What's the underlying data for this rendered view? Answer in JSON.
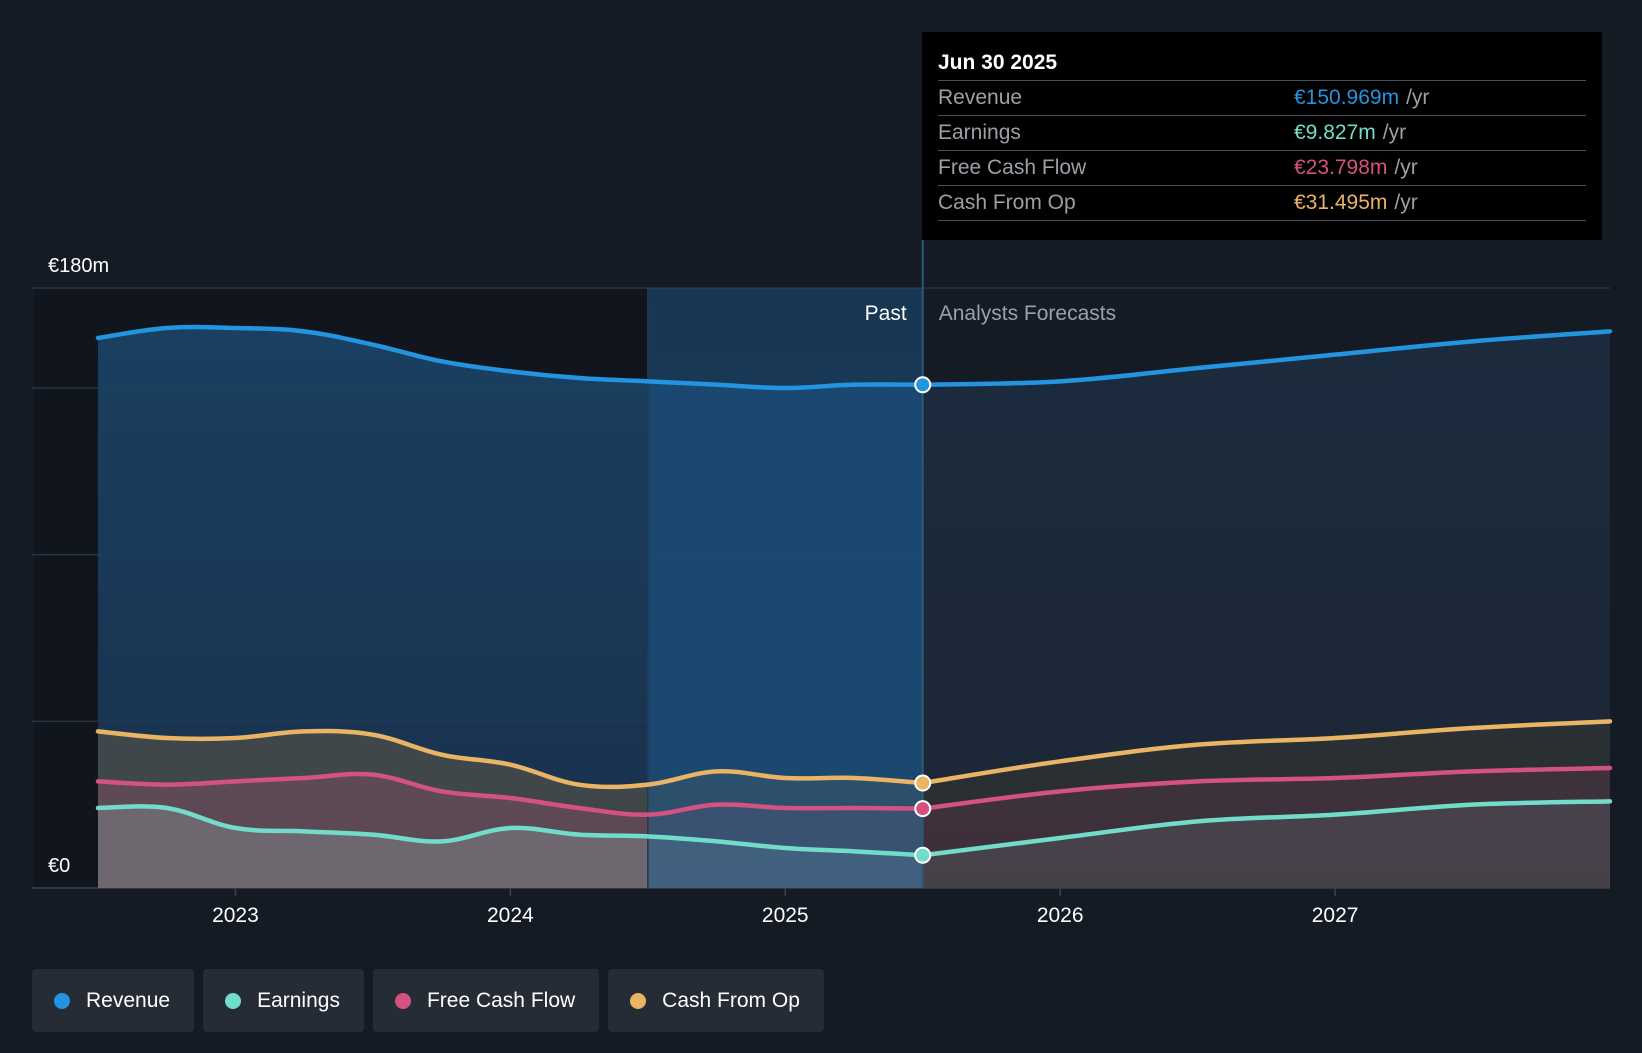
{
  "chart_data": {
    "type": "area",
    "y_max_label": "€180m",
    "y_min_label": "€0",
    "ylim": [
      0,
      180
    ],
    "x_ticks": [
      {
        "label": "2023",
        "x": 2023.0
      },
      {
        "label": "2024",
        "x": 2024.0
      },
      {
        "label": "2025",
        "x": 2025.0
      },
      {
        "label": "2026",
        "x": 2026.0
      },
      {
        "label": "2027",
        "x": 2027.0
      }
    ],
    "xlim": [
      2022.26,
      2028.0
    ],
    "past_label": "Past",
    "forecast_label": "Analysts Forecasts",
    "highlight_range": [
      2024.5,
      2025.5
    ],
    "divider_x": 2025.5,
    "series": [
      {
        "name": "Revenue",
        "color": "#2394df",
        "past": [
          [
            2022.5,
            165
          ],
          [
            2022.75,
            168
          ],
          [
            2023.0,
            168
          ],
          [
            2023.25,
            167
          ],
          [
            2023.5,
            163
          ],
          [
            2023.75,
            158
          ],
          [
            2024.0,
            155
          ],
          [
            2024.25,
            153
          ],
          [
            2024.5,
            152
          ],
          [
            2024.75,
            151
          ],
          [
            2025.0,
            150
          ],
          [
            2025.25,
            151
          ],
          [
            2025.5,
            150.969
          ]
        ],
        "forecast": [
          [
            2025.5,
            150.969
          ],
          [
            2026.0,
            152
          ],
          [
            2026.5,
            156
          ],
          [
            2027.0,
            160
          ],
          [
            2027.5,
            164
          ],
          [
            2028.0,
            167
          ]
        ]
      },
      {
        "name": "Cash From Op",
        "color": "#e9b463",
        "past": [
          [
            2022.5,
            47
          ],
          [
            2022.75,
            45
          ],
          [
            2023.0,
            45
          ],
          [
            2023.25,
            47
          ],
          [
            2023.5,
            46
          ],
          [
            2023.75,
            40
          ],
          [
            2024.0,
            37
          ],
          [
            2024.25,
            31
          ],
          [
            2024.5,
            31
          ],
          [
            2024.75,
            35
          ],
          [
            2025.0,
            33
          ],
          [
            2025.25,
            33
          ],
          [
            2025.5,
            31.495
          ]
        ],
        "forecast": [
          [
            2025.5,
            31.495
          ],
          [
            2026.0,
            38
          ],
          [
            2026.5,
            43
          ],
          [
            2027.0,
            45
          ],
          [
            2027.5,
            48
          ],
          [
            2028.0,
            50
          ]
        ]
      },
      {
        "name": "Free Cash Flow",
        "color": "#d4527f",
        "past": [
          [
            2022.5,
            32
          ],
          [
            2022.75,
            31
          ],
          [
            2023.0,
            32
          ],
          [
            2023.25,
            33
          ],
          [
            2023.5,
            34
          ],
          [
            2023.75,
            29
          ],
          [
            2024.0,
            27
          ],
          [
            2024.25,
            24
          ],
          [
            2024.5,
            22
          ],
          [
            2024.75,
            25
          ],
          [
            2025.0,
            24
          ],
          [
            2025.25,
            24
          ],
          [
            2025.5,
            23.798
          ]
        ],
        "forecast": [
          [
            2025.5,
            23.798
          ],
          [
            2026.0,
            29
          ],
          [
            2026.5,
            32
          ],
          [
            2027.0,
            33
          ],
          [
            2027.5,
            35
          ],
          [
            2028.0,
            36
          ]
        ]
      },
      {
        "name": "Earnings",
        "color": "#72dcca",
        "past": [
          [
            2022.5,
            24
          ],
          [
            2022.75,
            24
          ],
          [
            2023.0,
            18
          ],
          [
            2023.25,
            17
          ],
          [
            2023.5,
            16
          ],
          [
            2023.75,
            14
          ],
          [
            2024.0,
            18
          ],
          [
            2024.25,
            16
          ],
          [
            2024.5,
            15.5
          ],
          [
            2024.75,
            14
          ],
          [
            2025.0,
            12
          ],
          [
            2025.25,
            11
          ],
          [
            2025.5,
            9.827
          ]
        ],
        "forecast": [
          [
            2025.5,
            9.827
          ],
          [
            2026.0,
            15
          ],
          [
            2026.5,
            20
          ],
          [
            2027.0,
            22
          ],
          [
            2027.5,
            25
          ],
          [
            2028.0,
            26
          ]
        ]
      }
    ]
  },
  "tooltip": {
    "date": "Jun 30 2025",
    "rows": [
      {
        "label": "Revenue",
        "value": "€150.969m",
        "unit": "/yr",
        "color": "#2394df"
      },
      {
        "label": "Earnings",
        "value": "€9.827m",
        "unit": "/yr",
        "color": "#72dcca"
      },
      {
        "label": "Free Cash Flow",
        "value": "€23.798m",
        "unit": "/yr",
        "color": "#d4527f"
      },
      {
        "label": "Cash From Op",
        "value": "€31.495m",
        "unit": "/yr",
        "color": "#e9b463"
      }
    ]
  },
  "legend": [
    {
      "label": "Revenue",
      "color": "#2394df"
    },
    {
      "label": "Earnings",
      "color": "#72dcca"
    },
    {
      "label": "Free Cash Flow",
      "color": "#d4527f"
    },
    {
      "label": "Cash From Op",
      "color": "#e9b463"
    }
  ]
}
